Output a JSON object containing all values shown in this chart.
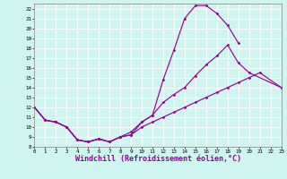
{
  "background_color": "#cff5f0",
  "line_color": "#990099",
  "grid_color": "#ffffff",
  "xlabel": "Windchill (Refroidissement éolien,°C)",
  "xlabel_fontsize": 6,
  "ylim": [
    8,
    22.5
  ],
  "xlim": [
    0,
    23
  ],
  "yticks": [
    8,
    9,
    10,
    11,
    12,
    13,
    14,
    15,
    16,
    17,
    18,
    19,
    20,
    21,
    22
  ],
  "xticks": [
    0,
    1,
    2,
    3,
    4,
    5,
    6,
    7,
    8,
    9,
    10,
    11,
    12,
    13,
    14,
    15,
    16,
    17,
    18,
    19,
    20,
    21,
    22,
    23
  ],
  "curve1_x": [
    0,
    1,
    2,
    3,
    4,
    5,
    6,
    7,
    8,
    9,
    10,
    11,
    12,
    13,
    14,
    15,
    16,
    17,
    18,
    19
  ],
  "curve1_y": [
    12,
    10.7,
    10.5,
    10.0,
    8.7,
    8.5,
    8.8,
    8.5,
    9.0,
    9.2,
    10.5,
    11.2,
    14.8,
    17.8,
    21.0,
    22.3,
    22.3,
    21.5,
    20.3,
    18.5
  ],
  "curve2_x": [
    0,
    1,
    2,
    3,
    4,
    5,
    6,
    7,
    8,
    9,
    10,
    11,
    12,
    13,
    14,
    15,
    16,
    17,
    18,
    19,
    20,
    21,
    23
  ],
  "curve2_y": [
    12,
    10.7,
    10.5,
    10.0,
    8.7,
    8.5,
    8.8,
    8.5,
    9.0,
    9.5,
    10.5,
    11.2,
    12.5,
    13.3,
    14.0,
    15.2,
    16.3,
    17.2,
    18.3,
    16.5,
    15.5,
    null,
    14.0
  ],
  "curve3_x": [
    0,
    1,
    2,
    3,
    4,
    5,
    6,
    7,
    8,
    9,
    10,
    11,
    12,
    13,
    14,
    15,
    16,
    17,
    18,
    19,
    20,
    21,
    22,
    23
  ],
  "curve3_y": [
    12,
    10.7,
    10.5,
    10.0,
    8.7,
    8.5,
    8.8,
    8.5,
    9.0,
    9.2,
    10.0,
    10.5,
    11.0,
    11.5,
    12.0,
    12.5,
    13.0,
    13.5,
    14.0,
    14.5,
    15.0,
    15.5,
    null,
    14.0
  ]
}
